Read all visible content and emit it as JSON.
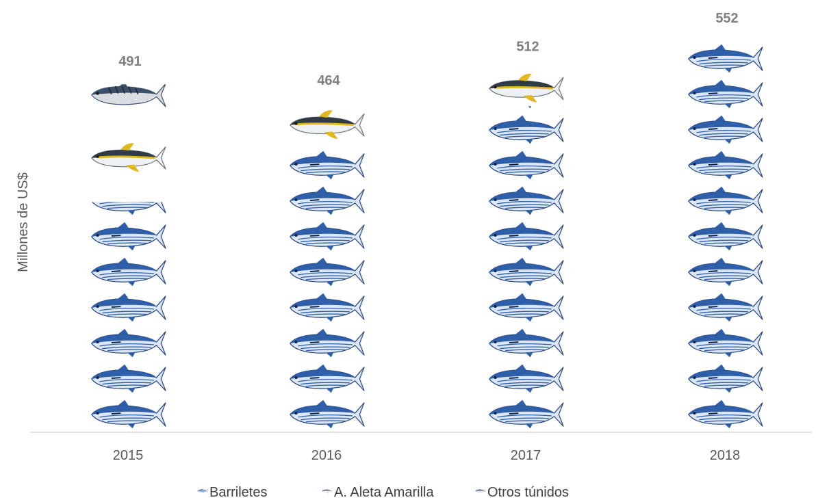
{
  "chart_data": {
    "type": "bar",
    "subtype": "stacked-pictograph",
    "title": "",
    "xlabel": "",
    "ylabel": "Millones de US$",
    "categories": [
      "2015",
      "2016",
      "2017",
      "2018"
    ],
    "totals": [
      491,
      464,
      512,
      552
    ],
    "series": [
      {
        "name": "Barriletes",
        "values": [
          325,
          405,
          460,
          552
        ]
      },
      {
        "name": "A. Aleta Amarilla",
        "values": [
          126,
          59,
          52,
          0
        ]
      },
      {
        "name": "Otros túnidos",
        "values": [
          40,
          0,
          0,
          0
        ]
      }
    ],
    "ylim": [
      0,
      552
    ],
    "grid": false,
    "legend_position": "bottom",
    "colors": {
      "Barriletes": "#2e5fa8",
      "A. Aleta Amarilla": "#e0b81e",
      "Otros túnidos": "#3a4f6a"
    },
    "icons": {
      "Barriletes": "skipjack-tuna-icon",
      "A. Aleta Amarilla": "yellowfin-tuna-icon",
      "Otros túnidos": "striped-tuna-icon"
    }
  }
}
